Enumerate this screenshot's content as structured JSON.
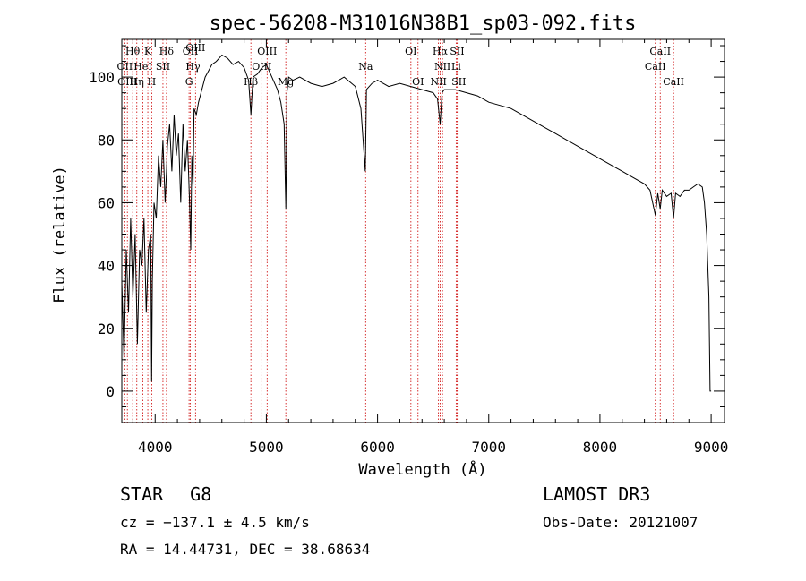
{
  "chart_data": {
    "type": "line",
    "title": "spec-56208-M31016N38B1_sp03-092.fits",
    "xlabel": "Wavelength (Å)",
    "ylabel": "Flux (relative)",
    "xlim": [
      3700,
      9120
    ],
    "ylim": [
      -10,
      112
    ],
    "xticks": [
      4000,
      5000,
      6000,
      7000,
      8000,
      9000
    ],
    "yticks": [
      0,
      20,
      40,
      60,
      80,
      100
    ],
    "x_minor_step": 200,
    "y_minor_step": 5,
    "line_color": "#000000",
    "marker_color": "#cc0000",
    "series": [
      {
        "name": "flux",
        "wavelength": [
          3700,
          3720,
          3740,
          3760,
          3780,
          3800,
          3820,
          3840,
          3860,
          3880,
          3900,
          3920,
          3940,
          3960,
          3968,
          3975,
          3990,
          4010,
          4030,
          4050,
          4070,
          4090,
          4102,
          4110,
          4130,
          4150,
          4170,
          4190,
          4210,
          4230,
          4250,
          4270,
          4290,
          4310,
          4320,
          4330,
          4340,
          4350,
          4370,
          4390,
          4420,
          4450,
          4480,
          4510,
          4550,
          4600,
          4650,
          4700,
          4750,
          4800,
          4840,
          4861,
          4880,
          4920,
          4960,
          5000,
          5050,
          5100,
          5130,
          5160,
          5175,
          5180,
          5185,
          5200,
          5240,
          5300,
          5400,
          5500,
          5600,
          5700,
          5800,
          5850,
          5890,
          5896,
          5900,
          5950,
          6000,
          6100,
          6200,
          6300,
          6400,
          6500,
          6540,
          6563,
          6580,
          6600,
          6700,
          6800,
          6900,
          7000,
          7100,
          7200,
          7300,
          7400,
          7500,
          7600,
          7700,
          7800,
          7900,
          8000,
          8100,
          8200,
          8300,
          8400,
          8450,
          8498,
          8520,
          8542,
          8560,
          8600,
          8640,
          8662,
          8680,
          8720,
          8760,
          8800,
          8840,
          8880,
          8920,
          8940,
          8960,
          8980,
          8990,
          9000
        ],
        "flux": [
          35,
          10,
          45,
          25,
          55,
          30,
          50,
          15,
          45,
          40,
          55,
          25,
          45,
          50,
          3,
          35,
          60,
          55,
          75,
          65,
          80,
          60,
          70,
          78,
          85,
          70,
          88,
          75,
          82,
          60,
          85,
          70,
          80,
          60,
          45,
          75,
          65,
          90,
          88,
          92,
          96,
          100,
          102,
          104,
          105,
          107,
          106,
          104,
          105,
          103,
          99,
          88,
          100,
          101,
          103,
          104,
          100,
          96,
          92,
          85,
          58,
          75,
          95,
          100,
          99,
          100,
          98,
          97,
          98,
          100,
          97,
          90,
          70,
          85,
          96,
          98,
          99,
          97,
          98,
          97,
          96,
          95,
          93,
          85,
          95,
          96,
          96,
          95,
          94,
          92,
          91,
          90,
          88,
          86,
          84,
          82,
          80,
          78,
          76,
          74,
          72,
          70,
          68,
          66,
          64,
          56,
          63,
          58,
          64,
          62,
          63,
          55,
          63,
          62,
          64,
          64,
          65,
          66,
          65,
          60,
          50,
          30,
          0,
          0
        ]
      }
    ],
    "lines": [
      {
        "label": "Hθ",
        "wl": 3798,
        "row": 1
      },
      {
        "label": "OII",
        "wl": 3727,
        "row": 2
      },
      {
        "label": "OIII",
        "wl": 3750,
        "row": 3
      },
      {
        "label": "K",
        "wl": 3934,
        "row": 1
      },
      {
        "label": "HeI",
        "wl": 3889,
        "row": 2
      },
      {
        "label": "Hη",
        "wl": 3835,
        "row": 3
      },
      {
        "label": "SII",
        "wl": 4070,
        "row": 2
      },
      {
        "label": "H",
        "wl": 3969,
        "row": 3
      },
      {
        "label": "Hδ",
        "wl": 4102,
        "row": 1
      },
      {
        "label": "OII",
        "wl": 4317,
        "row": 1
      },
      {
        "label": "Hγ",
        "wl": 4340,
        "row": 2
      },
      {
        "label": "G",
        "wl": 4305,
        "row": 3
      },
      {
        "label": "OIII",
        "wl": 4363,
        "row": 0
      },
      {
        "label": "OIII",
        "wl": 5007,
        "row": 1
      },
      {
        "label": "OIII",
        "wl": 4959,
        "row": 2
      },
      {
        "label": "Hβ",
        "wl": 4861,
        "row": 3
      },
      {
        "label": "Mg",
        "wl": 5175,
        "row": 3
      },
      {
        "label": "Na",
        "wl": 5893,
        "row": 2
      },
      {
        "label": "OI",
        "wl": 6300,
        "row": 1
      },
      {
        "label": "OI",
        "wl": 6364,
        "row": 3
      },
      {
        "label": "Hα",
        "wl": 6563,
        "row": 1
      },
      {
        "label": "SII",
        "wl": 6716,
        "row": 1
      },
      {
        "label": "NII",
        "wl": 6584,
        "row": 2
      },
      {
        "label": "Li",
        "wl": 6707,
        "row": 2
      },
      {
        "label": "NII",
        "wl": 6548,
        "row": 3
      },
      {
        "label": "SII",
        "wl": 6731,
        "row": 3
      },
      {
        "label": "CaII",
        "wl": 8542,
        "row": 1
      },
      {
        "label": "CaII",
        "wl": 8498,
        "row": 2
      },
      {
        "label": "CaII",
        "wl": 8662,
        "row": 3
      }
    ]
  },
  "info": {
    "class": "STAR",
    "subclass": "G8",
    "survey": "LAMOST DR3",
    "cz": "cz = −137.1 ± 4.5 km/s",
    "obs_date": "Obs-Date: 20121007",
    "coords": "RA =  14.44731, DEC =  38.68634"
  }
}
